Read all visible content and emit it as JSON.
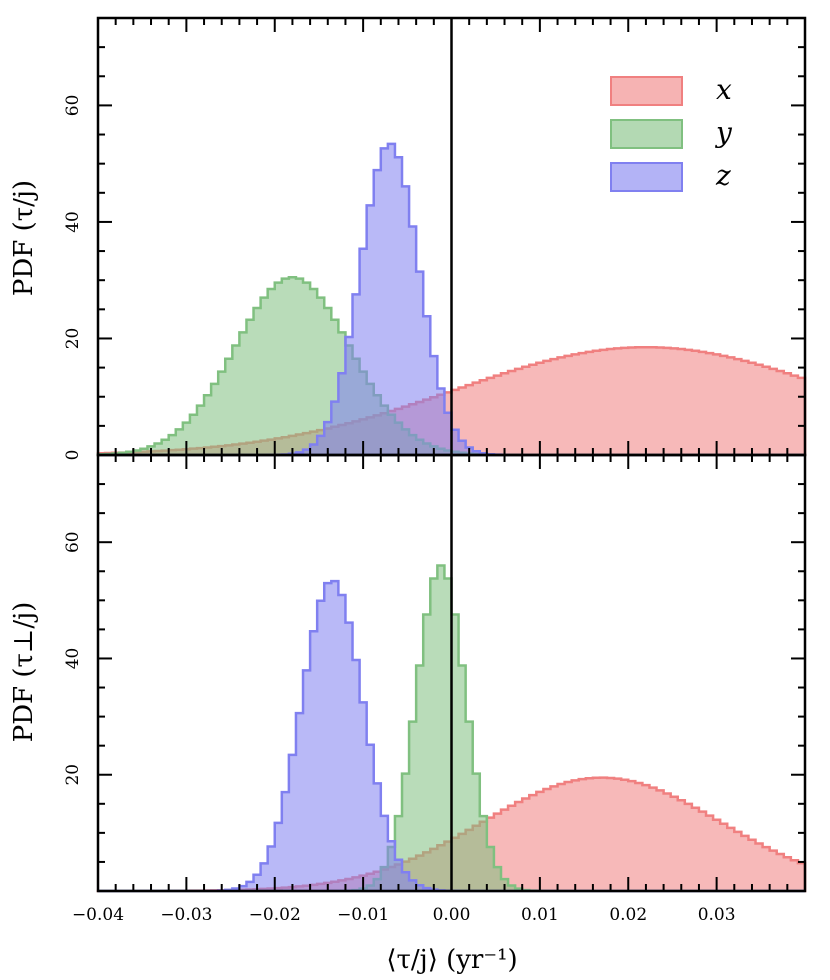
{
  "chart_data": [
    {
      "type": "histogram",
      "panel": "top",
      "ylabel": "PDF (τ/j)",
      "xlim": [
        -0.04,
        0.04
      ],
      "ylim": [
        0,
        75
      ],
      "yticks": [
        0,
        20,
        40,
        60
      ],
      "ytick_labels": [
        "0",
        "20",
        "40",
        "60"
      ],
      "series": [
        {
          "name": "x",
          "color": "#f08080",
          "mean": 0.022,
          "sd": 0.0215,
          "peak": 18.5
        },
        {
          "name": "y",
          "color": "#80c080",
          "mean": -0.018,
          "sd": 0.0065,
          "peak": 30.5
        },
        {
          "name": "z",
          "color": "#8080f0",
          "mean": -0.007,
          "sd": 0.0033,
          "peak": 53.5
        }
      ]
    },
    {
      "type": "histogram",
      "panel": "bottom",
      "ylabel": "PDF (τ⊥/j)",
      "xlabel": "⟨τ/j⟩ (yr⁻¹)",
      "xlim": [
        -0.04,
        0.04
      ],
      "ylim": [
        0,
        75
      ],
      "yticks": [
        20,
        40,
        60
      ],
      "ytick_labels": [
        "20",
        "40",
        "60"
      ],
      "xticks": [
        -0.04,
        -0.03,
        -0.02,
        -0.01,
        0.0,
        0.01,
        0.02,
        0.03
      ],
      "xtick_labels": [
        "−0.04",
        "−0.03",
        "−0.02",
        "−0.01",
        "0.00",
        "0.01",
        "0.02",
        "0.03"
      ],
      "series": [
        {
          "name": "x",
          "color": "#f08080",
          "mean": 0.017,
          "sd": 0.0135,
          "peak": 19.5
        },
        {
          "name": "y",
          "color": "#80c080",
          "mean": -0.0012,
          "sd": 0.0028,
          "peak": 56
        },
        {
          "name": "z",
          "color": "#8080f0",
          "mean": -0.0135,
          "sd": 0.0035,
          "peak": 53.5
        }
      ]
    }
  ],
  "legend": {
    "position": "top-right",
    "entries": [
      {
        "label": "x",
        "color": "#f08080"
      },
      {
        "label": "y",
        "color": "#80c080"
      },
      {
        "label": "z",
        "color": "#8080f0"
      }
    ]
  },
  "labels": {
    "top_ylabel": "PDF (τ/j)",
    "bottom_ylabel": "PDF (τ⊥/j)",
    "xlabel": "⟨τ/j⟩ (yr⁻¹)"
  }
}
